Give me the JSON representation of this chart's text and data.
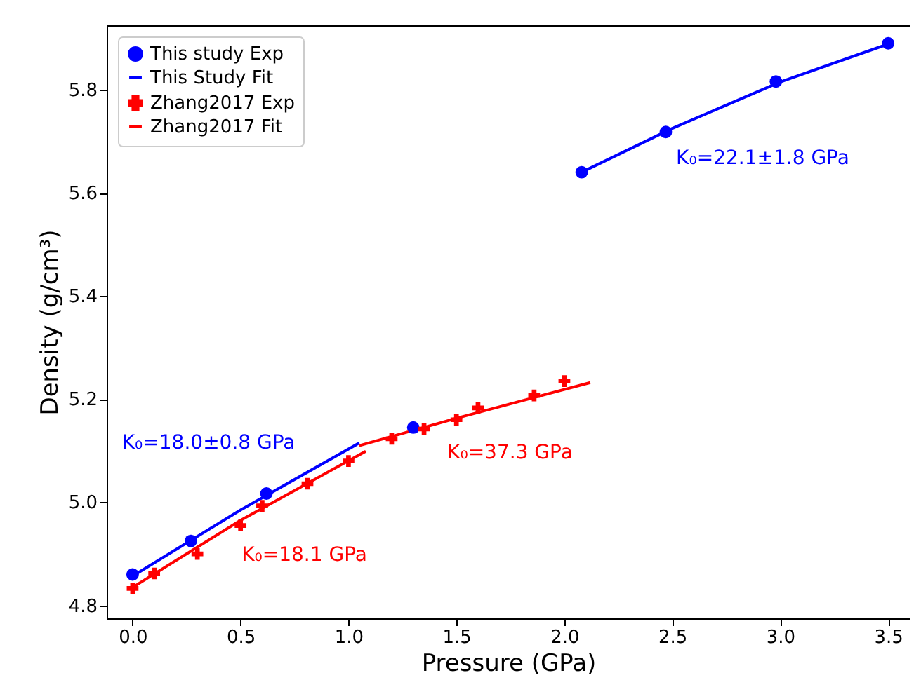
{
  "chart_data": {
    "type": "scatter",
    "xlabel": "Pressure (GPa)",
    "ylabel": "Density (g/cm³)",
    "xlim": [
      -0.12,
      3.6
    ],
    "xticks": [
      {
        "value": 0,
        "label": "0.0"
      },
      {
        "value": 0.5,
        "label": "0.5"
      },
      {
        "value": 1,
        "label": "1.0"
      },
      {
        "value": 1.5,
        "label": "1.5"
      },
      {
        "value": 2,
        "label": "2.0"
      },
      {
        "value": 2.5,
        "label": "2.5"
      },
      {
        "value": 3,
        "label": "3.0"
      },
      {
        "value": 3.5,
        "label": "3.5"
      }
    ],
    "ylim": [
      4.775,
      5.925
    ],
    "yticks": [
      {
        "value": 4.8,
        "label": "4.8"
      },
      {
        "value": 5,
        "label": "5.0"
      },
      {
        "value": 5.2,
        "label": "5.2"
      },
      {
        "value": 5.4,
        "label": "5.4"
      },
      {
        "value": 5.6,
        "label": "5.6"
      },
      {
        "value": 5.8,
        "label": "5.8"
      }
    ],
    "grid": false,
    "legend": "top left",
    "series": [
      {
        "name": "This study Exp",
        "marker": "circle",
        "color": "#0000ff",
        "x": [
          0,
          0.27,
          0.62,
          1.3,
          2.08,
          2.47,
          2.98,
          3.5
        ],
        "values": [
          4.86,
          4.925,
          5.017,
          5.145,
          5.64,
          5.718,
          5.816,
          5.89
        ]
      },
      {
        "name": "This Study Fit",
        "type": "line",
        "color": "#0000ff",
        "x": [
          0,
          0.5,
          1.05,
          null,
          2.08,
          2.5,
          3.0,
          3.51
        ],
        "values": [
          4.857,
          4.985,
          5.115,
          null,
          5.64,
          5.725,
          5.815,
          5.89
        ]
      },
      {
        "name": "Zhang2017 Exp",
        "marker": "cross",
        "color": "#ff0000",
        "x": [
          0,
          0.1,
          0.3,
          0.5,
          0.6,
          0.81,
          1.0,
          1.2,
          1.35,
          1.5,
          1.6,
          1.86,
          2.0
        ],
        "values": [
          4.833,
          4.862,
          4.9,
          4.955,
          4.993,
          5.036,
          5.08,
          5.123,
          5.142,
          5.16,
          5.183,
          5.207,
          5.235
        ]
      },
      {
        "name": "Zhang2017 Fit",
        "type": "line",
        "color": "#ff0000",
        "x": [
          0,
          0.5,
          1.08,
          null,
          1.05,
          1.5,
          2.12
        ],
        "values": [
          4.835,
          4.965,
          5.099,
          null,
          5.11,
          5.163,
          5.232
        ]
      }
    ],
    "annotations": [
      "K₀=18.0±0.8 GPa",
      "K₀=18.1 GPa",
      "K₀=37.3 GPa",
      "K₀=22.1±1.8 GPa"
    ]
  }
}
